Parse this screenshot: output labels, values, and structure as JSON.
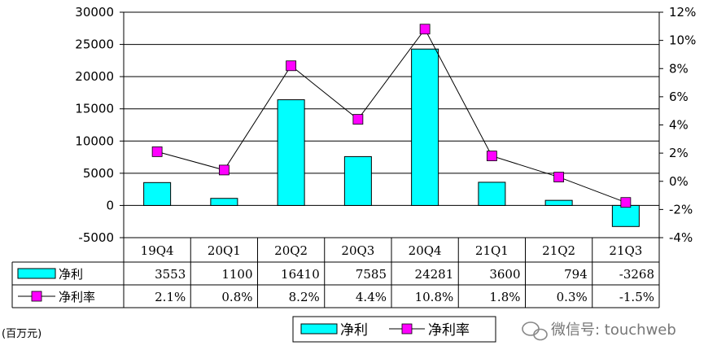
{
  "chart_data": {
    "type": "bar",
    "categories": [
      "19Q4",
      "20Q1",
      "20Q2",
      "20Q3",
      "20Q4",
      "21Q1",
      "21Q2",
      "21Q3"
    ],
    "series": [
      {
        "name": "净利",
        "kind": "bar",
        "axis": "left",
        "color": "#00ffff",
        "values": [
          3553,
          1100,
          16410,
          7585,
          24281,
          3600,
          794,
          -3268
        ]
      },
      {
        "name": "净利率",
        "kind": "line",
        "axis": "right",
        "marker_color": "#ff00ff",
        "values": [
          2.1,
          0.8,
          8.2,
          4.4,
          10.8,
          1.8,
          0.3,
          -1.5
        ]
      }
    ],
    "table_rows": [
      {
        "label": "净利",
        "cells": [
          "3553",
          "1100",
          "16410",
          "7585",
          "24281",
          "3600",
          "794",
          "-3268"
        ]
      },
      {
        "label": "净利率",
        "cells": [
          "2.1%",
          "0.8%",
          "8.2%",
          "4.4%",
          "10.8%",
          "1.8%",
          "0.3%",
          "-1.5%"
        ]
      }
    ],
    "y_left": {
      "min": -5000,
      "max": 30000,
      "ticks": [
        30000,
        25000,
        20000,
        15000,
        10000,
        5000,
        0,
        -5000
      ]
    },
    "y_right": {
      "min": -4,
      "max": 12,
      "ticks": [
        "12%",
        "10%",
        "8%",
        "6%",
        "4%",
        "2%",
        "0%",
        "-2%",
        "-4%"
      ]
    },
    "unit_label": "(百万元)",
    "legend": {
      "items": [
        "净利",
        "净利率"
      ],
      "position": "bottom"
    },
    "grid": true
  },
  "watermark": "微信号: touchweb"
}
